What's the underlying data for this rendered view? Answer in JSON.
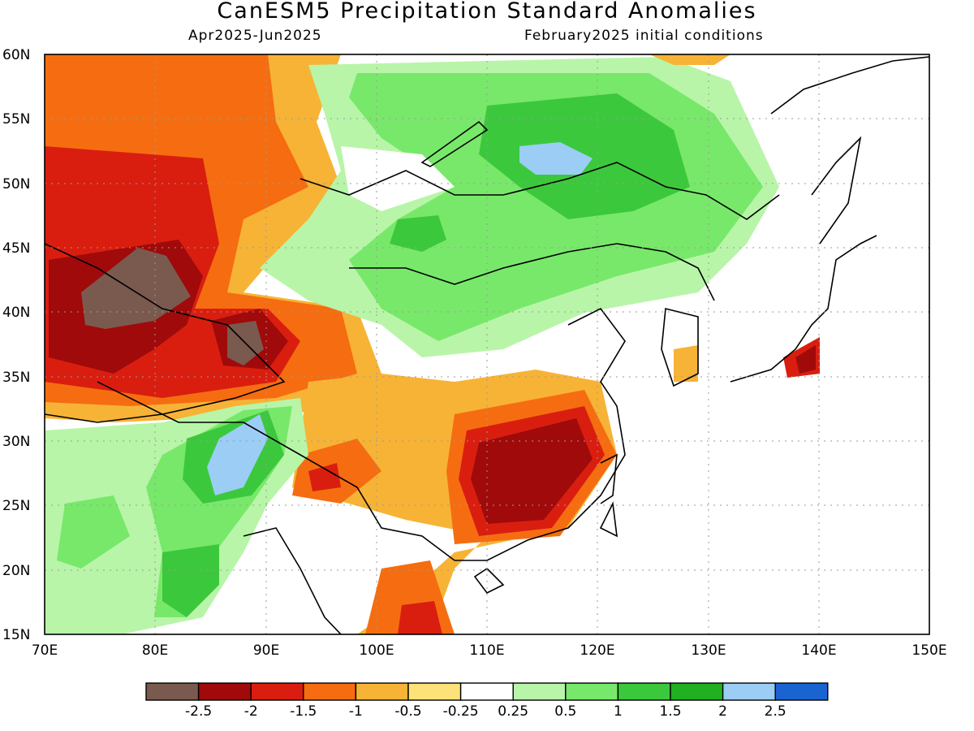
{
  "title": "CanESM5 Precipitation Standard Anomalies",
  "subtitle_left": "Apr2025-Jun2025",
  "subtitle_right": "February2025 initial conditions",
  "lat_labels": [
    "60N",
    "55N",
    "50N",
    "45N",
    "40N",
    "35N",
    "30N",
    "25N",
    "20N",
    "15N"
  ],
  "lon_labels": [
    "70E",
    "80E",
    "90E",
    "100E",
    "110E",
    "120E",
    "130E",
    "140E",
    "150E"
  ],
  "colorbar": {
    "colors": [
      "#7a5a4e",
      "#a00a0a",
      "#d91e10",
      "#f56d10",
      "#f7b336",
      "#fde27a",
      "#ffffff",
      "#b8f5a8",
      "#78e86a",
      "#3cc83c",
      "#20b020",
      "#9bcdf5",
      "#1a64d2"
    ],
    "labels": [
      "-2.5",
      "-2",
      "-1.5",
      "-1",
      "-0.5",
      "-0.25",
      "0.25",
      "0.5",
      "1",
      "1.5",
      "2",
      "2.5"
    ]
  }
}
